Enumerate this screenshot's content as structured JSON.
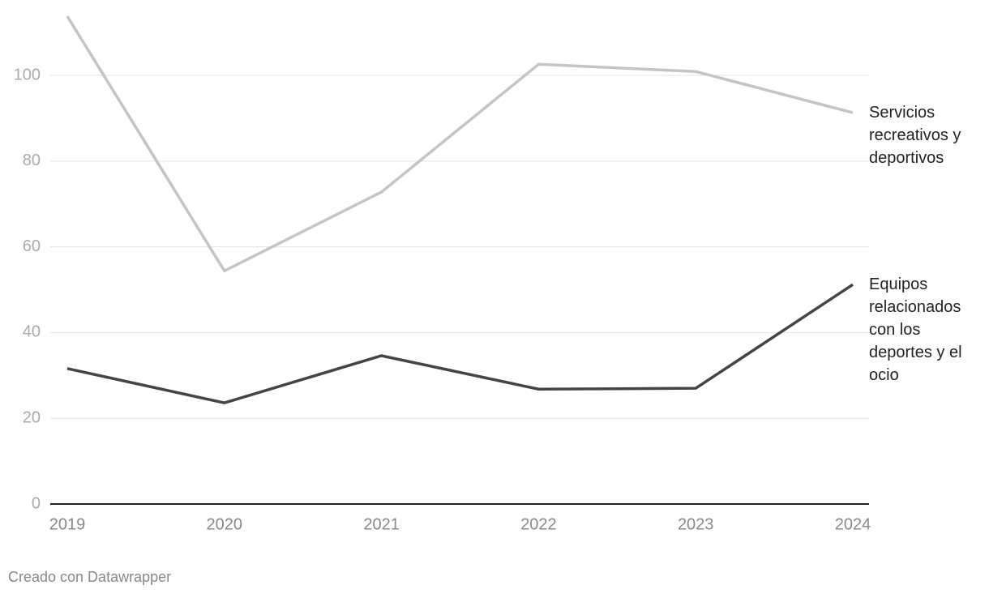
{
  "chart_data": {
    "type": "line",
    "categories": [
      "2019",
      "2020",
      "2021",
      "2022",
      "2023",
      "2024"
    ],
    "series": [
      {
        "name": "Servicios recreativos y deportivos",
        "color": "#c4c4c4",
        "values": [
          113.8,
          54.4,
          72.8,
          102.6,
          100.9,
          91.3
        ]
      },
      {
        "name": "Equipos relacionados con los deportes y el ocio",
        "color": "#444444",
        "values": [
          31.6,
          23.6,
          34.6,
          26.8,
          27.0,
          51.2
        ]
      }
    ],
    "ylim": [
      0,
      114
    ],
    "yticks": [
      0,
      20,
      40,
      60,
      80,
      100
    ],
    "grid": true,
    "credit": "Creado con Datawrapper"
  }
}
